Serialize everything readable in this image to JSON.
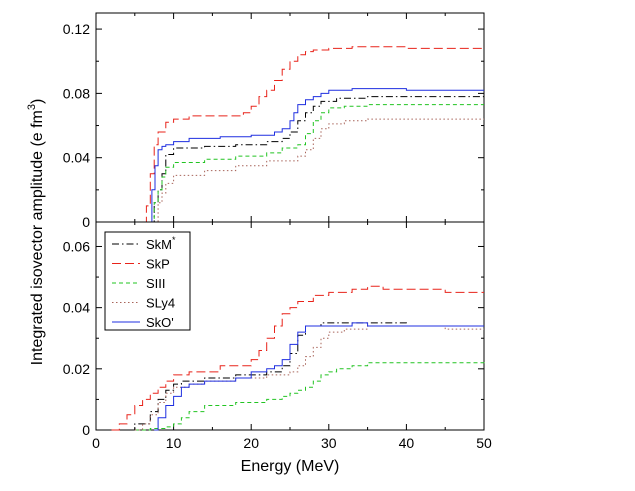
{
  "chart_data": [
    {
      "type": "line",
      "panel": "top",
      "xlim": [
        0,
        50
      ],
      "ylim": [
        0,
        0.13
      ],
      "xticks": [
        0,
        10,
        20,
        30,
        40,
        50
      ],
      "yticks": [
        "0",
        "0.04",
        "0.08",
        "0.12"
      ],
      "ytick_values": [
        0,
        0.04,
        0.08,
        0.12
      ],
      "series": [
        {
          "name": "SkM*",
          "color": "#000000",
          "dash": "dashdot",
          "x": [
            6.8,
            7.5,
            8.0,
            8.5,
            9.0,
            10.0,
            14,
            18,
            22,
            24,
            25,
            26,
            27,
            28,
            29,
            31,
            35,
            40,
            45,
            50
          ],
          "y": [
            0,
            0.012,
            0.02,
            0.03,
            0.042,
            0.046,
            0.047,
            0.048,
            0.05,
            0.052,
            0.056,
            0.063,
            0.068,
            0.072,
            0.075,
            0.077,
            0.078,
            0.078,
            0.078,
            0.078
          ]
        },
        {
          "name": "SkP",
          "color": "#e8231a",
          "dash": "longdash",
          "x": [
            6.0,
            6.5,
            7.0,
            7.5,
            8.0,
            9.0,
            10,
            12,
            16,
            19,
            20,
            21,
            22,
            23,
            24,
            25,
            26,
            27,
            28,
            30,
            33,
            37,
            40,
            45,
            50
          ],
          "y": [
            0,
            0.01,
            0.03,
            0.048,
            0.056,
            0.062,
            0.064,
            0.066,
            0.066,
            0.068,
            0.072,
            0.078,
            0.082,
            0.088,
            0.095,
            0.1,
            0.104,
            0.106,
            0.107,
            0.108,
            0.109,
            0.109,
            0.108,
            0.108,
            0.108
          ]
        },
        {
          "name": "SIII",
          "color": "#22c422",
          "dash": "dashed",
          "x": [
            7.0,
            7.5,
            8.0,
            8.5,
            9.0,
            10,
            14,
            18,
            22,
            24,
            26,
            27,
            28,
            29,
            30,
            32,
            35,
            40,
            45,
            50
          ],
          "y": [
            0,
            0.012,
            0.02,
            0.028,
            0.034,
            0.037,
            0.039,
            0.041,
            0.043,
            0.046,
            0.048,
            0.055,
            0.063,
            0.068,
            0.071,
            0.072,
            0.073,
            0.073,
            0.073,
            0.073
          ]
        },
        {
          "name": "SLy4",
          "color": "#a8645a",
          "dash": "dotted",
          "x": [
            7.0,
            8.0,
            8.5,
            9.0,
            10,
            14,
            18,
            22,
            26,
            27,
            28,
            29,
            30,
            32,
            35,
            40,
            45,
            50
          ],
          "y": [
            0,
            0.012,
            0.018,
            0.024,
            0.029,
            0.032,
            0.035,
            0.038,
            0.041,
            0.045,
            0.052,
            0.058,
            0.061,
            0.063,
            0.064,
            0.064,
            0.064,
            0.064
          ]
        },
        {
          "name": "SkO'",
          "color": "#1f2fe0",
          "dash": "solid",
          "x": [
            6.8,
            7.2,
            7.6,
            8.0,
            8.5,
            9.0,
            10,
            12,
            16,
            20,
            22,
            23,
            24,
            25,
            25.5,
            26,
            27,
            28,
            29,
            30,
            33,
            36,
            40,
            45,
            50
          ],
          "y": [
            0,
            0.02,
            0.035,
            0.045,
            0.047,
            0.048,
            0.05,
            0.052,
            0.053,
            0.054,
            0.054,
            0.056,
            0.058,
            0.063,
            0.068,
            0.073,
            0.076,
            0.078,
            0.08,
            0.082,
            0.083,
            0.083,
            0.082,
            0.082,
            0.082
          ]
        }
      ]
    },
    {
      "type": "line",
      "panel": "bottom",
      "xlim": [
        0,
        50
      ],
      "ylim": [
        0,
        0.068
      ],
      "xticks": [
        0,
        10,
        20,
        30,
        40,
        50
      ],
      "xticklabels": [
        "0",
        "10",
        "20",
        "30",
        "40",
        "50"
      ],
      "yticks": [
        "0",
        "0.02",
        "0.04",
        "0.06"
      ],
      "ytick_values": [
        0,
        0.02,
        0.04,
        0.06
      ],
      "xlabel": "Energy (MeV)",
      "ylabel": "Integrated isovector amplitude (e fm",
      "ylabel_sup": "3",
      "ylabel_close": ")",
      "legend_position": "upper-left",
      "series": [
        {
          "name": "SkM*",
          "color": "#000000",
          "dash": "dashdot",
          "x": [
            2.5,
            5,
            7,
            8,
            9,
            10,
            11,
            14,
            18,
            22,
            24,
            25,
            26,
            27,
            28,
            29,
            30,
            33,
            35,
            40,
            45,
            50
          ],
          "y": [
            0,
            0.002,
            0.006,
            0.01,
            0.013,
            0.015,
            0.016,
            0.017,
            0.018,
            0.019,
            0.021,
            0.025,
            0.031,
            0.034,
            0.034,
            0.035,
            0.035,
            0.035,
            0.035,
            0.034,
            0.034,
            0.034
          ]
        },
        {
          "name": "SkP",
          "color": "#e8231a",
          "dash": "longdash",
          "x": [
            2.0,
            3,
            4,
            5,
            6,
            7,
            8,
            9,
            10,
            12,
            16,
            20,
            21,
            22,
            23,
            24,
            25,
            26,
            28,
            30,
            33,
            35,
            37,
            40,
            45,
            50
          ],
          "y": [
            0,
            0.002,
            0.005,
            0.008,
            0.01,
            0.012,
            0.014,
            0.016,
            0.018,
            0.019,
            0.021,
            0.023,
            0.026,
            0.03,
            0.034,
            0.038,
            0.04,
            0.042,
            0.044,
            0.045,
            0.046,
            0.047,
            0.046,
            0.046,
            0.045,
            0.045
          ]
        },
        {
          "name": "SIII",
          "color": "#22c422",
          "dash": "dashed",
          "x": [
            5,
            7,
            9,
            10,
            11,
            12,
            14,
            18,
            22,
            24,
            25,
            26,
            27,
            28,
            29,
            30,
            31,
            33,
            35,
            40,
            45,
            50
          ],
          "y": [
            0,
            0.0005,
            0.001,
            0.002,
            0.004,
            0.006,
            0.008,
            0.009,
            0.01,
            0.011,
            0.012,
            0.013,
            0.014,
            0.016,
            0.018,
            0.019,
            0.02,
            0.021,
            0.022,
            0.022,
            0.022,
            0.021
          ]
        },
        {
          "name": "SLy4",
          "color": "#a8645a",
          "dash": "dotted",
          "x": [
            5,
            6,
            7,
            8,
            9,
            10,
            12,
            14,
            18,
            22,
            25,
            26,
            27,
            28,
            29,
            30,
            32,
            35,
            40,
            45,
            50
          ],
          "y": [
            0,
            0.002,
            0.005,
            0.009,
            0.012,
            0.014,
            0.015,
            0.016,
            0.017,
            0.018,
            0.019,
            0.021,
            0.024,
            0.027,
            0.03,
            0.032,
            0.033,
            0.034,
            0.034,
            0.033,
            0.033
          ]
        },
        {
          "name": "SkO'",
          "color": "#1f2fe0",
          "dash": "solid",
          "x": [
            7.5,
            8,
            9,
            10,
            11,
            12,
            14,
            18,
            20,
            22,
            23,
            24,
            25,
            26,
            27,
            28,
            30,
            33,
            35,
            40,
            45,
            50
          ],
          "y": [
            0,
            0.004,
            0.008,
            0.011,
            0.014,
            0.015,
            0.016,
            0.017,
            0.019,
            0.02,
            0.021,
            0.023,
            0.028,
            0.032,
            0.034,
            0.034,
            0.034,
            0.035,
            0.034,
            0.034,
            0.034,
            0.034
          ]
        }
      ]
    }
  ],
  "legend": [
    {
      "label": "SkM",
      "sup": "*",
      "color": "#000000",
      "dash": "dashdot"
    },
    {
      "label": "SkP",
      "sup": "",
      "color": "#e8231a",
      "dash": "longdash"
    },
    {
      "label": "SIII",
      "sup": "",
      "color": "#22c422",
      "dash": "dashed"
    },
    {
      "label": "SLy4",
      "sup": "",
      "color": "#a8645a",
      "dash": "dotted"
    },
    {
      "label": "SkO'",
      "sup": "",
      "color": "#1f2fe0",
      "dash": "solid"
    }
  ]
}
